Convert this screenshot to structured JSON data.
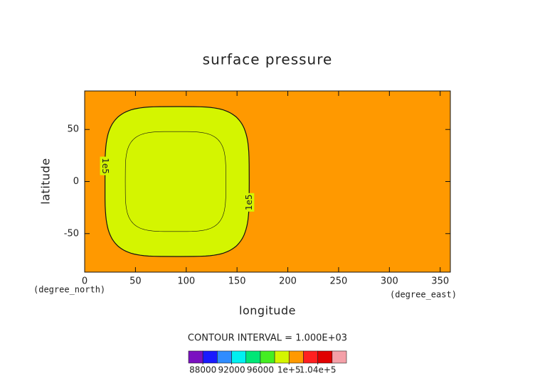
{
  "chart_data": {
    "type": "contour",
    "title": "surface pressure",
    "x_label": "longitude",
    "y_label": "latitude",
    "x_units": "(degree_east)",
    "y_units": "(degree_north)",
    "xlim": [
      0,
      360
    ],
    "xticks": [
      0,
      50,
      100,
      150,
      200,
      250,
      300,
      350
    ],
    "ylim": [
      -87,
      87
    ],
    "yticks": [
      -50,
      0,
      50
    ],
    "contours": [
      {
        "level": {
          "value": 100000,
          "label": "1e5"
        },
        "lon": [
          20,
          162
        ],
        "lat": [
          -72,
          72
        ]
      },
      {
        "level": 99000,
        "lon": [
          40,
          139
        ],
        "lat": [
          -48,
          48
        ]
      }
    ],
    "contour_interval_label": "CONTOUR INTERVAL = 1.000E+03",
    "colorbar": {
      "bounds": [
        86000,
        88000,
        90000,
        92000,
        94000,
        96000,
        98000,
        100000,
        102000,
        104000,
        106000,
        108000
      ],
      "colors": [
        "#7a10c0",
        "#1a1aff",
        "#2f8cff",
        "#00f0f0",
        "#00e676",
        "#44ee22",
        "#d4f500",
        "#ff9900",
        "#ff2020",
        "#e00000",
        "#f4a0a8"
      ],
      "ticks": [
        88000,
        92000,
        96000,
        {
          "value": 100000,
          "label": "1e+5"
        },
        {
          "value": 104000,
          "label": "1.04e+5"
        }
      ]
    }
  }
}
